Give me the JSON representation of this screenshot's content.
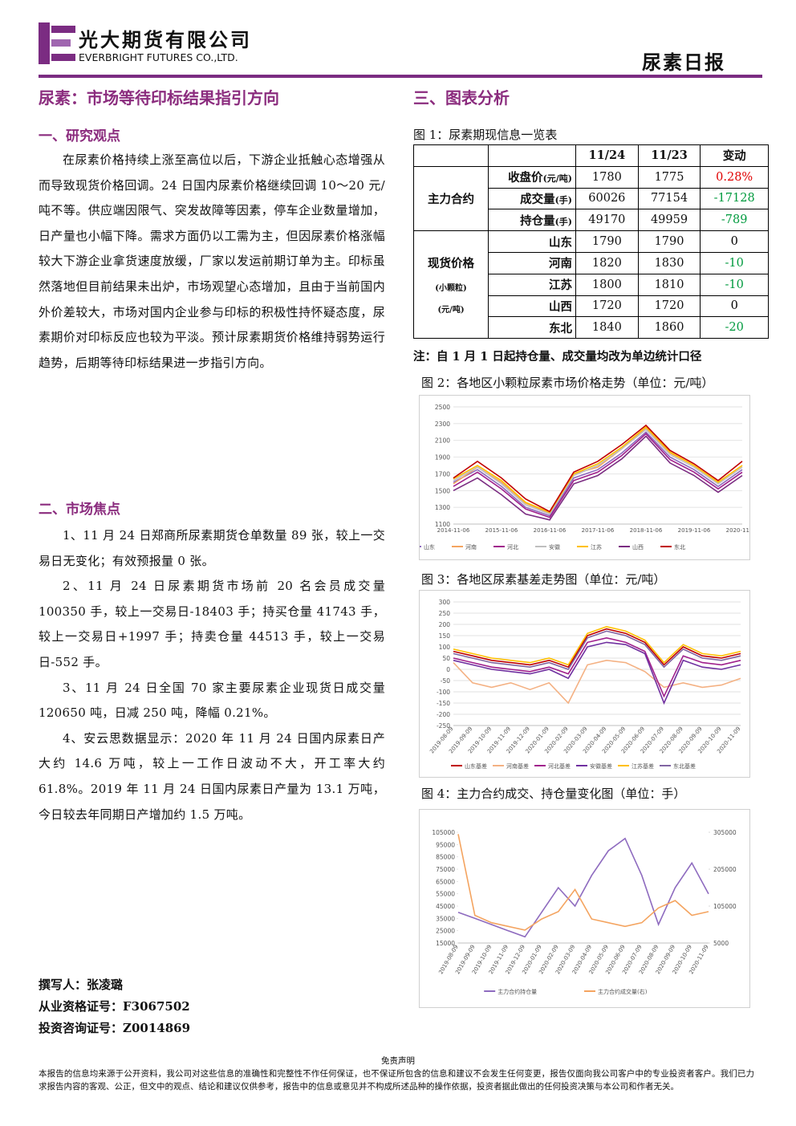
{
  "header": {
    "company_cn": "光大期货有限公司",
    "company_en": "EVERBRIGHT FUTURES CO.,LTD.",
    "report_title": "尿素日报"
  },
  "title": "尿素：市场等待印标结果指引方向",
  "section1": {
    "heading": "一、研究观点",
    "paragraphs": [
      "在尿素价格持续上涨至高位以后，下游企业抵触心态增强从而导致现货价格回调。24 日国内尿素价格继续回调 10～20 元/吨不等。供应端因限气、突发故障等因素，停车企业数量增加，日产量也小幅下降。需求方面仍以工需为主，但因尿素价格涨幅较大下游企业拿货速度放缓，厂家以发运前期订单为主。印标虽然落地但目前结果未出炉，市场观望心态增加，且由于当前国内外价差较大，市场对国内企业参与印标的积极性持怀疑态度，尿素期价对印标反应也较为平淡。预计尿素期货价格维持弱势运行趋势，后期等待印标结果进一步指引方向。"
    ]
  },
  "section2": {
    "heading": "二、市场焦点",
    "paragraphs": [
      "1、11 月 24 日郑商所尿素期货仓单数量 89 张，较上一交易日无变化；有效预报量 0 张。",
      "2、11 月 24 日尿素期货市场前 20 名会员成交量 100350 手，较上一交易日-18403 手；持买仓量 41743 手，较上一交易日+1997 手；持卖仓量 44513 手，较上一交易日-552 手。",
      "3、11 月 24 日全国 70 家主要尿素企业现货日成交量 120650 吨，日减 250 吨，降幅 0.21%。",
      "4、安云思数据显示：2020 年 11 月 24 日国内尿素日产大约 14.6 万吨，较上一工作日波动不大，开工率大约 61.8%。2019 年 11 月 24 日国内尿素日产量为 13.1 万吨，今日较去年同期日产增加约 1.5 万吨。"
    ]
  },
  "author": [
    "撰写人：张凌璐",
    "从业资格证号：F3067502",
    "投资咨询证号：Z0014869"
  ],
  "section3": {
    "heading": "三、图表分析"
  },
  "table": {
    "caption": "图 1：尿素期现信息一览表",
    "columns": [
      "11/24",
      "11/23",
      "变动"
    ],
    "groups": [
      {
        "name": "主力合约",
        "rows": [
          {
            "item": "收盘价",
            "unit": "(元/吨)",
            "values": [
              "1780",
              "1775"
            ],
            "change": "0.28%"
          },
          {
            "item": "成交量",
            "unit": "(手)",
            "values": [
              "60026",
              "77154"
            ],
            "change": "-17128"
          },
          {
            "item": "持仓量",
            "unit": "(手)",
            "values": [
              "49170",
              "49959"
            ],
            "change": "-789"
          }
        ]
      },
      {
        "name": "现货价格",
        "sub": [
          "(小颗粒)",
          "(元/吨)"
        ],
        "rows": [
          {
            "item": "山东",
            "values": [
              "1790",
              "1790"
            ],
            "change": "0"
          },
          {
            "item": "河南",
            "values": [
              "1820",
              "1830"
            ],
            "change": "-10"
          },
          {
            "item": "江苏",
            "values": [
              "1800",
              "1810"
            ],
            "change": "-10"
          },
          {
            "item": "山西",
            "values": [
              "1720",
              "1720"
            ],
            "change": "0"
          },
          {
            "item": "东北",
            "values": [
              "1840",
              "1860"
            ],
            "change": "-20"
          }
        ]
      }
    ],
    "note": "注：自 1 月 1 日起持仓量、成交量均改为单边统计口径"
  },
  "chart_data": [
    {
      "type": "line",
      "title": "图 2：各地区小颗粒尿素市场价格走势（单位：元/吨）",
      "categories": [
        "2014-11-06",
        null,
        "2015-11-06",
        null,
        "2016-11-06",
        null,
        "2017-11-06",
        null,
        "2018-11-06",
        null,
        "2019-11-06",
        null,
        "2020-11-06"
      ],
      "ylim": [
        1100,
        2500
      ],
      "yticks": [
        1100,
        1300,
        1500,
        1700,
        1900,
        2100,
        2300,
        2500
      ],
      "grid": true,
      "series": [
        {
          "name": "山东",
          "color": "#8e6bbf",
          "values": [
            1600,
            1750,
            1550,
            1300,
            1200,
            1650,
            1750,
            1950,
            2200,
            1900,
            1750,
            1550,
            1750
          ]
        },
        {
          "name": "河南",
          "color": "#f4a460",
          "values": [
            1580,
            1780,
            1600,
            1350,
            1230,
            1700,
            1780,
            2000,
            2250,
            1950,
            1800,
            1600,
            1800
          ]
        },
        {
          "name": "河北",
          "color": "#a0208c",
          "values": [
            1550,
            1720,
            1520,
            1280,
            1180,
            1620,
            1720,
            1920,
            2180,
            1870,
            1720,
            1520,
            1720
          ]
        },
        {
          "name": "安徽",
          "color": "#bfbfbf",
          "values": [
            1620,
            1780,
            1580,
            1330,
            1220,
            1680,
            1800,
            2000,
            2230,
            1930,
            1780,
            1580,
            1780
          ]
        },
        {
          "name": "江苏",
          "color": "#ffc000",
          "values": [
            1640,
            1800,
            1620,
            1360,
            1240,
            1700,
            1820,
            2020,
            2260,
            1960,
            1800,
            1600,
            1800
          ]
        },
        {
          "name": "山西",
          "color": "#7b2c82",
          "values": [
            1500,
            1650,
            1450,
            1220,
            1150,
            1580,
            1680,
            1880,
            2150,
            1830,
            1680,
            1480,
            1680
          ]
        },
        {
          "name": "东北",
          "color": "#c00000",
          "values": [
            1650,
            1850,
            1650,
            1400,
            1250,
            1720,
            1850,
            2050,
            2280,
            1980,
            1820,
            1620,
            1850
          ]
        }
      ]
    },
    {
      "type": "line",
      "title": "图 3：各地区尿素基差走势图（单位：元/吨）",
      "categories": [
        "2019-08-09",
        "2019-09-09",
        "2019-10-09",
        "2019-11-09",
        "2019-12-09",
        "2020-01-09",
        "2020-02-09",
        "2020-03-09",
        "2020-04-09",
        "2020-05-09",
        "2020-06-09",
        "2020-07-09",
        "2020-08-09",
        "2020-09-09",
        "2020-10-09",
        "2020-11-09"
      ],
      "ylim": [
        -250,
        300
      ],
      "yticks": [
        -250,
        -200,
        -150,
        -100,
        -50,
        0,
        50,
        100,
        150,
        200,
        250,
        300
      ],
      "grid": true,
      "series": [
        {
          "name": "山东基差",
          "color": "#c00000",
          "values": [
            80,
            60,
            40,
            30,
            20,
            40,
            10,
            150,
            180,
            160,
            120,
            20,
            100,
            60,
            50,
            70
          ]
        },
        {
          "name": "河南基差",
          "color": "#f4b183",
          "values": [
            30,
            -60,
            -80,
            -60,
            -90,
            -60,
            -150,
            20,
            40,
            30,
            -10,
            -80,
            -60,
            -80,
            -70,
            -40
          ]
        },
        {
          "name": "河北基差",
          "color": "#a0208c",
          "values": [
            50,
            30,
            10,
            0,
            -10,
            10,
            -20,
            120,
            140,
            120,
            80,
            -120,
            60,
            30,
            20,
            40
          ]
        },
        {
          "name": "安徽基差",
          "color": "#7030a0",
          "values": [
            40,
            20,
            0,
            -10,
            -20,
            0,
            -40,
            100,
            120,
            110,
            70,
            -150,
            40,
            10,
            0,
            20
          ]
        },
        {
          "name": "江苏基差",
          "color": "#ffc000",
          "values": [
            90,
            70,
            50,
            40,
            30,
            50,
            20,
            160,
            190,
            170,
            130,
            30,
            110,
            70,
            60,
            80
          ]
        },
        {
          "name": "东北基差",
          "color": "#8064a2",
          "values": [
            70,
            50,
            30,
            20,
            10,
            30,
            0,
            140,
            170,
            150,
            110,
            10,
            90,
            50,
            40,
            60
          ]
        }
      ]
    },
    {
      "type": "line",
      "title": "图 4：主力合约成交、持仓量变化图（单位：手）",
      "categories": [
        "2019-08-09",
        "2019-09-09",
        "2019-10-09",
        "2019-11-09",
        "2019-12-09",
        "2020-01-09",
        "2020-02-09",
        "2020-03-09",
        "2020-04-09",
        "2020-05-09",
        "2020-06-09",
        "2020-07-09",
        "2020-08-09",
        "2020-09-09",
        "2020-10-09",
        "2020-11-09"
      ],
      "ylim": [
        15000,
        105000
      ],
      "yticks": [
        15000,
        25000,
        35000,
        45000,
        55000,
        65000,
        75000,
        85000,
        95000,
        105000
      ],
      "y2lim": [
        5000,
        305000
      ],
      "y2ticks": [
        5000,
        105000,
        205000,
        305000
      ],
      "grid": false,
      "series": [
        {
          "name": "主力合约持仓量",
          "color": "#8e6bbf",
          "values": [
            40000,
            35000,
            30000,
            25000,
            20000,
            40000,
            60000,
            45000,
            70000,
            90000,
            100000,
            70000,
            30000,
            60000,
            80000,
            55000
          ]
        },
        {
          "name": "主力合约成交量(右)",
          "color": "#f4a460",
          "axis": "y2",
          "values": [
            300000,
            80000,
            60000,
            50000,
            40000,
            70000,
            90000,
            150000,
            70000,
            60000,
            50000,
            60000,
            100000,
            120000,
            80000,
            90000
          ]
        }
      ]
    }
  ],
  "footer": {
    "title": "免责声明",
    "text": "本报告的信息均来源于公开资料，我公司对这些信息的准确性和完整性不作任何保证，也不保证所包含的信息和建议不会发生任何变更，报告仅面向我公司客户中的专业投资者客户。我们已力求报告内容的客观、公正，但文中的观点、结论和建议仅供参考，报告中的信息或意见并不构成所述品种的操作依据，投资者据此做出的任何投资决策与本公司和作者无关。"
  }
}
